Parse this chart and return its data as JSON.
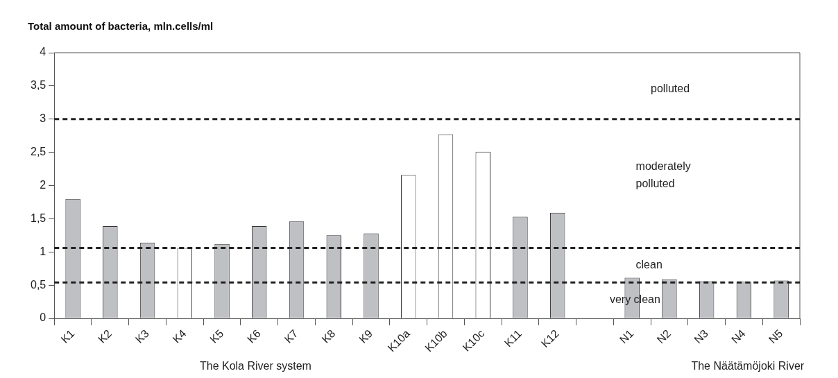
{
  "chart_data": {
    "type": "bar",
    "title": "Total amount of bacteria, mln.cells/ml",
    "categories": [
      "K1",
      "K2",
      "K3",
      "K4",
      "K5",
      "K6",
      "K7",
      "K8",
      "K9",
      "K10a",
      "K10b",
      "K10c",
      "K11",
      "K12",
      null,
      "N1",
      "N2",
      "N3",
      "N4",
      "N5"
    ],
    "values": [
      1.8,
      1.39,
      1.14,
      1.06,
      1.12,
      1.39,
      1.46,
      1.25,
      1.28,
      2.16,
      2.77,
      2.51,
      1.53,
      1.59,
      null,
      0.61,
      0.59,
      0.56,
      0.55,
      0.57
    ],
    "colors": [
      "#bfc0c4",
      "#bfc0c4",
      "#bfc0c4",
      "#ffffff",
      "#bfc0c4",
      "#bfc0c4",
      "#bfc0c4",
      "#bfc0c4",
      "#bfc0c4",
      "#ffffff",
      "#ffffff",
      "#ffffff",
      "#bfc0c4",
      "#bfc0c4",
      "#ffffff",
      "#bfc0c4",
      "#bfc0c4",
      "#bfc0c4",
      "#bfc0c4",
      "#bfc0c4"
    ],
    "ylim": [
      0,
      4
    ],
    "yticks": [
      0,
      {
        "value": 0.5,
        "label": "0,5"
      },
      1,
      {
        "value": 1.5,
        "label": "1,5"
      },
      2,
      {
        "value": 2.5,
        "label": "2,5"
      },
      3,
      {
        "value": 3.5,
        "label": "3,5"
      },
      4
    ],
    "ref_lines": [
      {
        "axis": "y",
        "value": 3,
        "color": "#222222",
        "line_style": "dashed"
      },
      {
        "axis": "y",
        "value": 1.06,
        "color": "#222222",
        "line_style": "dashed"
      },
      {
        "axis": "y",
        "value": 0.54,
        "color": "#222222",
        "line_style": "dashed"
      }
    ],
    "annotations": [
      "polluted",
      "moderately polluted",
      "clean",
      "very clean",
      "The Kola River system",
      "The Näätämöjoki River"
    ],
    "grid": false,
    "legend": false
  }
}
